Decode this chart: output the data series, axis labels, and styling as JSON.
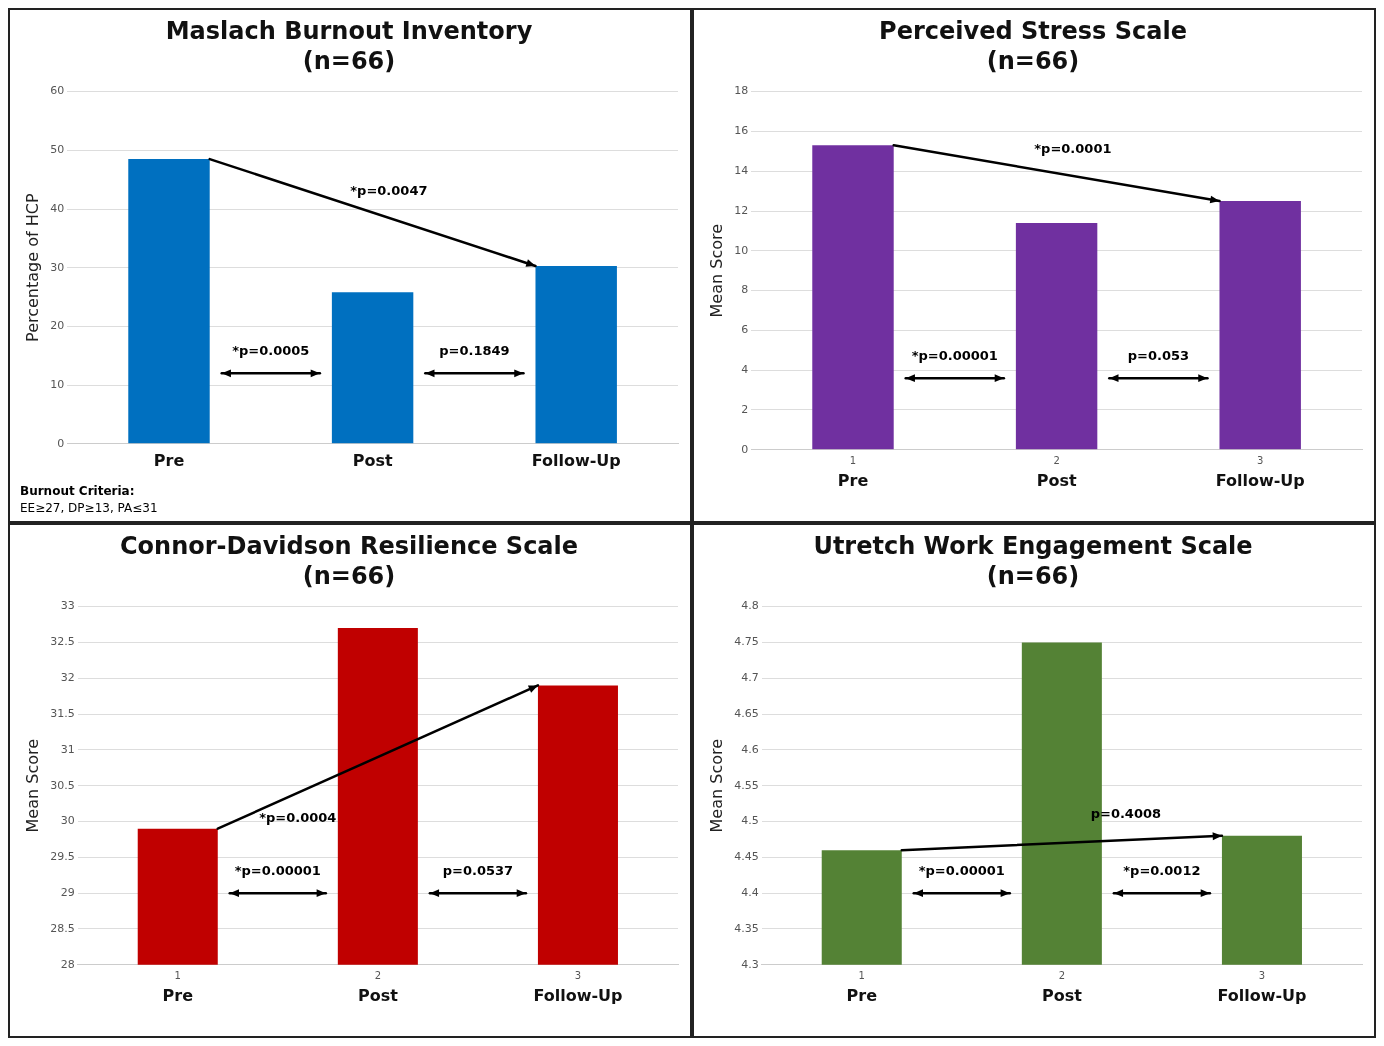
{
  "chart_data": [
    {
      "type": "bar",
      "title": "Maslach Burnout Inventory",
      "subtitle": "(n=66)",
      "ylabel": "Percentage of HCP",
      "categories": [
        "Pre",
        "Post",
        "Follow-Up"
      ],
      "values": [
        48.5,
        25.8,
        30.3
      ],
      "color": "#0070c0",
      "ylim": [
        0,
        60
      ],
      "yticks": [
        0,
        10,
        20,
        30,
        40,
        50,
        60
      ],
      "grid": "y",
      "annotations": [
        "*p=0.0005",
        "p=0.1849",
        "*p=0.0047",
        "Burnout Criteria:",
        "EE≥27, DP≥13, PA≤31"
      ]
    },
    {
      "type": "bar",
      "title": "Perceived Stress Scale",
      "subtitle": "(n=66)",
      "ylabel": "Mean Score",
      "categories": [
        "Pre",
        "Post",
        "Follow-Up"
      ],
      "values": [
        15.3,
        11.4,
        12.5
      ],
      "color": "#7030a0",
      "ylim": [
        0,
        18
      ],
      "yticks": [
        0,
        2,
        4,
        6,
        8,
        10,
        12,
        14,
        16,
        18
      ],
      "grid": "y",
      "annotations": [
        "*p=0.00001",
        "p=0.053",
        "*p=0.0001",
        "1",
        "2",
        "3"
      ]
    },
    {
      "type": "bar",
      "title": "Connor-Davidson Resilience Scale",
      "subtitle": "(n=66)",
      "ylabel": "Mean Score",
      "categories": [
        "Pre",
        "Post",
        "Follow-Up"
      ],
      "values": [
        29.9,
        32.7,
        31.9
      ],
      "color": "#c00000",
      "ylim": [
        28,
        33
      ],
      "yticks": [
        28,
        28.5,
        29,
        29.5,
        30,
        30.5,
        31,
        31.5,
        32,
        32.5,
        33
      ],
      "grid": "y",
      "annotations": [
        "*p=0.00001",
        "p=0.0537",
        "*p=0.0004",
        "1",
        "2",
        "3"
      ]
    },
    {
      "type": "bar",
      "title": "Utretch Work Engagement Scale",
      "subtitle": "(n=66)",
      "ylabel": "Mean Score",
      "categories": [
        "Pre",
        "Post",
        "Follow-Up"
      ],
      "values": [
        4.46,
        4.75,
        4.48
      ],
      "color": "#548235",
      "ylim": [
        4.3,
        4.8
      ],
      "yticks": [
        4.3,
        4.35,
        4.4,
        4.45,
        4.5,
        4.55,
        4.6,
        4.65,
        4.7,
        4.75,
        4.8
      ],
      "grid": "y",
      "annotations": [
        "*p=0.00001",
        "*p=0.0012",
        "p=0.4008",
        "1",
        "2",
        "3"
      ]
    }
  ]
}
